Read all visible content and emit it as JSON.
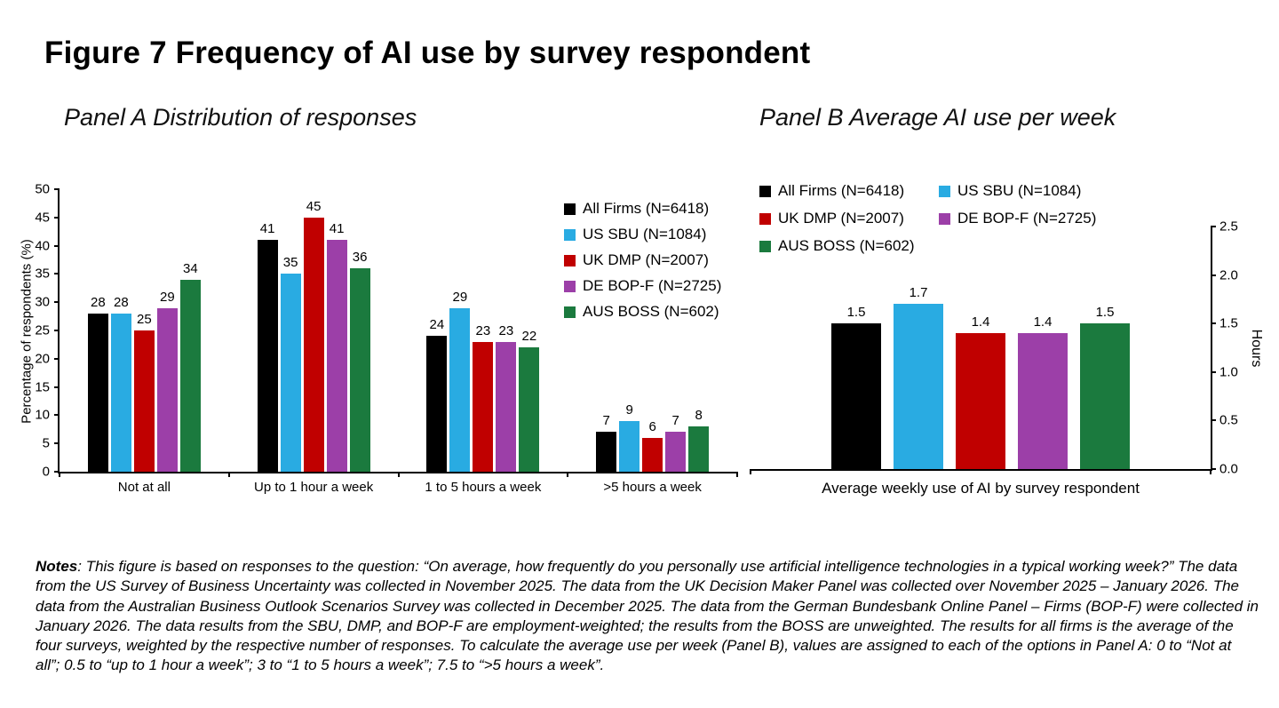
{
  "title": "Figure 7 Frequency of AI use by survey respondent",
  "notes": {
    "label": "Notes",
    "text": ": This figure is based on responses to the question: “On average, how frequently do you personally use artificial intelligence technologies in a typical working week?” The data from the US Survey of Business Uncertainty was collected in November 2025. The data from the UK Decision Maker Panel was collected over November 2025 – January 2026. The data from the Australian Business Outlook Scenarios Survey was collected in December 2025. The data from the German Bundesbank Online Panel – Firms (BOP-F) were collected in January 2026. The data results from the SBU, DMP, and BOP-F are employment-weighted; the results from the BOSS are unweighted. The results for all firms is the average of the four surveys, weighted by the respective number of responses. To calculate the average use per week (Panel B), values are assigned to each of the options in Panel A: 0 to “Not at all”; 0.5 to “up to 1 hour a week”; 3 to “1 to 5 hours a week”; 7.5 to “>5 hours a week”."
  },
  "chart_data": [
    {
      "type": "bar",
      "panel": "A",
      "title": "Panel A Distribution of responses",
      "xlabel": "",
      "ylabel": "Percentage of respondents (%)",
      "ylim": [
        0,
        50
      ],
      "ytick_step": 5,
      "grid": false,
      "legend_position": "right-inside",
      "categories": [
        "Not at all",
        "Up to 1 hour a week",
        "1 to 5 hours a week",
        ">5 hours a week"
      ],
      "series": [
        {
          "name": "All Firms (N=6418)",
          "color": "#000000",
          "values": [
            28,
            41,
            24,
            7
          ]
        },
        {
          "name": "US SBU (N=1084)",
          "color": "#29abe2",
          "values": [
            28,
            35,
            29,
            9
          ]
        },
        {
          "name": "UK DMP (N=2007)",
          "color": "#c00000",
          "values": [
            25,
            45,
            23,
            6
          ]
        },
        {
          "name": "DE BOP-F (N=2725)",
          "color": "#9c3fa8",
          "values": [
            29,
            41,
            23,
            7
          ]
        },
        {
          "name": "AUS BOSS (N=602)",
          "color": "#1b7a3e",
          "values": [
            34,
            36,
            22,
            8
          ]
        }
      ]
    },
    {
      "type": "bar",
      "panel": "B",
      "title": "Panel B Average AI use per week",
      "xlabel": "Average weekly use of AI by survey respondent",
      "ylabel": "Hours",
      "ylim": [
        0.0,
        2.5
      ],
      "ytick_step": 0.5,
      "grid": false,
      "legend_position": "top",
      "yaxis_side": "right",
      "categories": [
        "Average weekly use of AI by survey respondent"
      ],
      "series": [
        {
          "name": "All Firms (N=6418)",
          "color": "#000000",
          "values": [
            1.5
          ]
        },
        {
          "name": "US SBU (N=1084)",
          "color": "#29abe2",
          "values": [
            1.7
          ]
        },
        {
          "name": "UK DMP (N=2007)",
          "color": "#c00000",
          "values": [
            1.4
          ]
        },
        {
          "name": "DE BOP-F (N=2725)",
          "color": "#9c3fa8",
          "values": [
            1.4
          ]
        },
        {
          "name": "AUS BOSS (N=602)",
          "color": "#1b7a3e",
          "values": [
            1.5
          ]
        }
      ]
    }
  ]
}
